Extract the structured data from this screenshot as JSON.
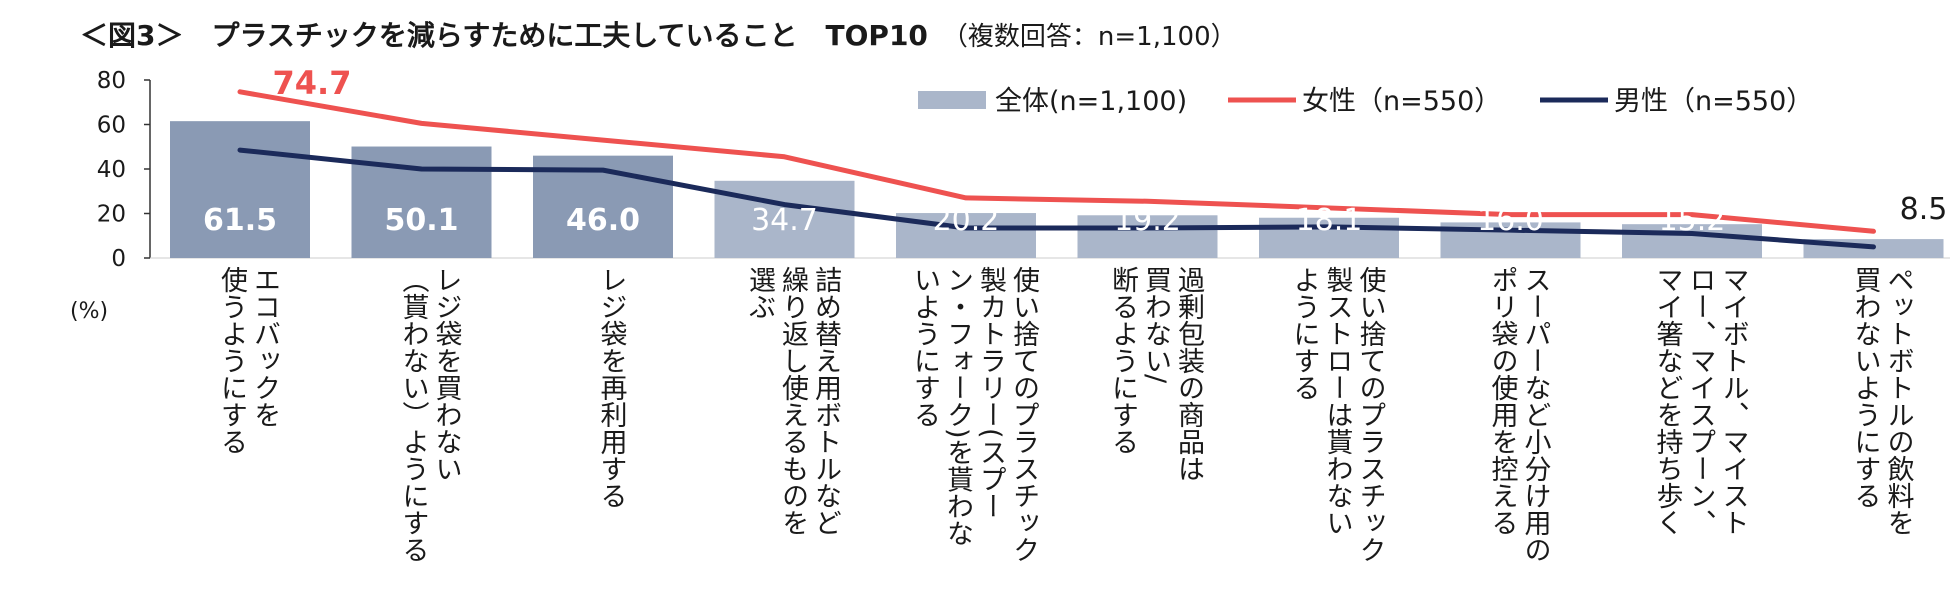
{
  "title": {
    "main": "＜図3＞　プラスチックを減らすために工夫していること　TOP10",
    "sub": "（複数回答：n=1,100）"
  },
  "colors": {
    "bar_strong": "#8a9ab4",
    "bar_light": "#aab6ca",
    "female": "#ee5250",
    "male": "#1b2a5a",
    "axis": "#333333"
  },
  "chart_data": {
    "type": "bar",
    "title": "＜図3＞　プラスチックを減らすために工夫していること　TOP10",
    "ylabel": "(%)",
    "ylim": [
      0,
      80
    ],
    "yticks": [
      "0",
      "20",
      "40",
      "60",
      "80"
    ],
    "legend_position": "top-right",
    "categories": [
      "エコバックを\n使うようにする",
      "レジ袋を買わない\n（貰わない）ようにする",
      "レジ袋を再利用する",
      "詰め替え用ボトルなど\n繰り返し使えるものを\n選ぶ",
      "使い捨てのプラスチック\n製カトラリー(スプー\nン・フォーク)を貰わな\nいようにする",
      "過剰包装の商品は\n買わない/\n断るようにする",
      "使い捨てのプラスチック\n製ストローは貰わない\nようにする",
      "スーパーなど小分け用の\nポリ袋の使用を控える",
      "マイボトル、マイスト\nロー、マイスプーン、\nマイ箸などを持ち歩く",
      "ペットボトルの飲料を\n買わないようにする"
    ],
    "series": [
      {
        "name": "全体(n=1,100)",
        "kind": "bar",
        "values": [
          61.5,
          50.1,
          46.0,
          34.7,
          20.2,
          19.2,
          18.1,
          16.0,
          15.2,
          8.5
        ],
        "labels": [
          "61.5",
          "50.1",
          "46.0",
          "34.7",
          "20.2",
          "19.2",
          "18.1",
          "16.0",
          "15.2",
          "8.5"
        ]
      },
      {
        "name": "女性（n=550）",
        "kind": "line",
        "values": [
          74.7,
          60.5,
          53.0,
          45.5,
          27.0,
          25.5,
          22.5,
          19.5,
          19.5,
          12.0
        ],
        "highlight_label": "74.7"
      },
      {
        "name": "男性（n=550）",
        "kind": "line",
        "values": [
          48.5,
          40.0,
          39.5,
          24.0,
          13.5,
          13.5,
          14.0,
          12.5,
          11.0,
          5.0
        ]
      }
    ]
  }
}
